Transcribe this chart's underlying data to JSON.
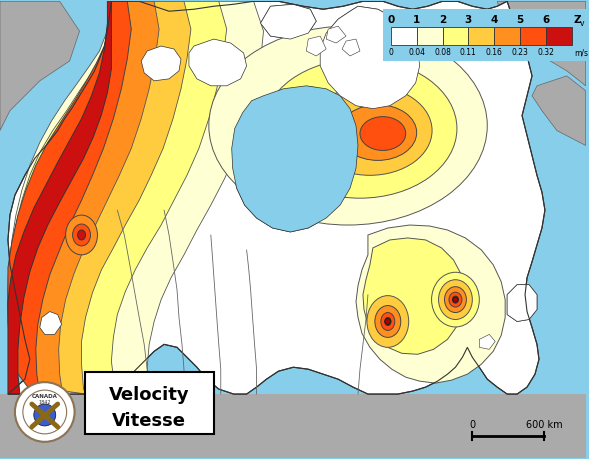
{
  "background_color": "#87CEEB",
  "gray_land": "#AAAAAA",
  "white_canada": "#FFFFFF",
  "province_line_color": "#555555",
  "hazard_colors": [
    "#FFFFD4",
    "#FFFF80",
    "#FFCC40",
    "#FF9020",
    "#FF5010",
    "#CC1010"
  ],
  "cb_colors": [
    "#FFFFFF",
    "#FFFFD4",
    "#FFFF80",
    "#FFCC40",
    "#FF9020",
    "#FF5010",
    "#CC1010"
  ],
  "cb_zv_labels": [
    "0",
    "1",
    "2",
    "3",
    "4",
    "5",
    "6",
    "Zv"
  ],
  "cb_ms_labels": [
    "0",
    "0.04",
    "0.08",
    "0.11",
    "0.16",
    "0.23",
    "0.32",
    "m/s"
  ],
  "label_velocity": "Velocity",
  "label_vitesse": "Vitesse",
  "scale_label": "600 km"
}
